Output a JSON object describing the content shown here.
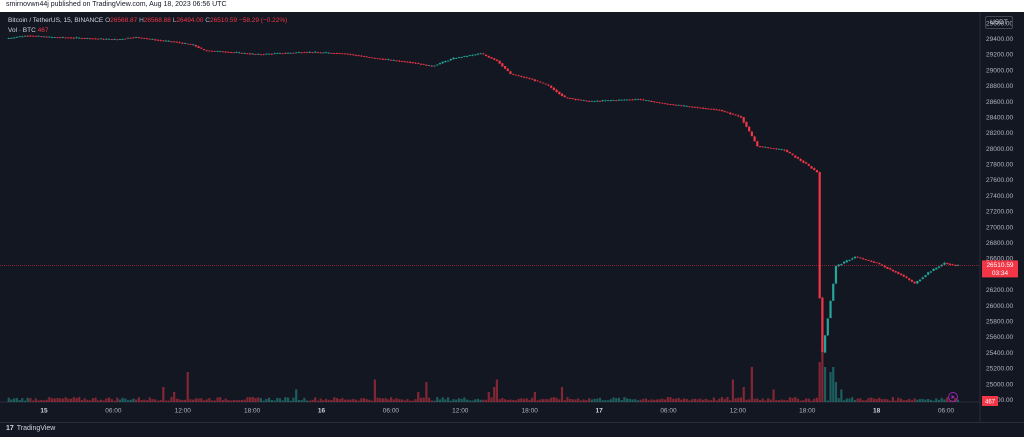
{
  "header": {
    "published": "smirnovwn44j published on TradingView.com, Aug 18, 2023 06:56 UTC"
  },
  "legend": {
    "symbol": "Bitcoin / TetherUS, 15, BINANCE",
    "o_label": "O",
    "o_value": "26568.87",
    "h_label": "H",
    "h_value": "26568.88",
    "l_label": "L",
    "l_value": "26494.00",
    "c_label": "C",
    "c_value": "26510.59",
    "change": "−58.29 (−0.22%)",
    "vol_label": "Vol · BTC",
    "vol_value": "467"
  },
  "price_axis": {
    "quote_currency": "USDT",
    "last_price": "26510.59",
    "countdown": "03:34",
    "volume_tag": "467"
  },
  "footer": {
    "logo_mark": "17",
    "logo_text": "TradingView"
  },
  "colors": {
    "up": "#26a69a",
    "down": "#f23645",
    "background": "#131722",
    "grid": "#1f2330"
  },
  "chart_data": {
    "type": "candlestick",
    "symbol": "BTCUSDT",
    "interval": "15m",
    "exchange": "BINANCE",
    "x_tick_labels": [
      "15",
      "06:00",
      "12:00",
      "18:00",
      "16",
      "06:00",
      "12:00",
      "18:00",
      "17",
      "06:00",
      "12:00",
      "18:00",
      "18",
      "06:00"
    ],
    "y_tick_labels": [
      "29600.00",
      "29400.00",
      "29200.00",
      "29000.00",
      "28800.00",
      "28600.00",
      "28400.00",
      "28200.00",
      "28000.00",
      "27800.00",
      "27600.00",
      "27400.00",
      "27200.00",
      "27000.00",
      "26800.00",
      "26600.00",
      "26400.00",
      "26200.00",
      "26000.00",
      "25800.00",
      "25600.00",
      "25400.00",
      "25200.00",
      "25000.00",
      "24800.00"
    ],
    "ylim": [
      24770,
      29740
    ],
    "grid": false,
    "price_keyframes": [
      [
        0,
        29400
      ],
      [
        3,
        29420
      ],
      [
        8,
        29440
      ],
      [
        16,
        29420
      ],
      [
        26,
        29410
      ],
      [
        33,
        29400
      ],
      [
        41,
        29390
      ],
      [
        47,
        29420
      ],
      [
        50,
        29410
      ],
      [
        56,
        29380
      ],
      [
        62,
        29360
      ],
      [
        69,
        29320
      ],
      [
        73,
        29250
      ],
      [
        78,
        29240
      ],
      [
        93,
        29200
      ],
      [
        111,
        29230
      ],
      [
        125,
        29210
      ],
      [
        136,
        29150
      ],
      [
        149,
        29100
      ],
      [
        157,
        29050
      ],
      [
        165,
        29150
      ],
      [
        175,
        29210
      ],
      [
        181,
        29120
      ],
      [
        186,
        28950
      ],
      [
        194,
        28880
      ],
      [
        200,
        28800
      ],
      [
        206,
        28650
      ],
      [
        215,
        28600
      ],
      [
        233,
        28630
      ],
      [
        243,
        28570
      ],
      [
        253,
        28530
      ],
      [
        263,
        28490
      ],
      [
        271,
        28400
      ],
      [
        277,
        28030
      ],
      [
        287,
        27980
      ],
      [
        295,
        27800
      ],
      [
        299,
        27700
      ],
      [
        300,
        26100
      ],
      [
        301,
        25400
      ],
      [
        306,
        26500
      ],
      [
        313,
        26620
      ],
      [
        321,
        26540
      ],
      [
        330,
        26390
      ],
      [
        335,
        26280
      ],
      [
        340,
        26420
      ],
      [
        346,
        26540
      ],
      [
        350,
        26510
      ]
    ],
    "volume_spikes": [
      [
        58,
        6
      ],
      [
        62,
        4
      ],
      [
        67,
        12
      ],
      [
        107,
        5
      ],
      [
        136,
        9
      ],
      [
        152,
        4
      ],
      [
        155,
        8
      ],
      [
        178,
        4
      ],
      [
        180,
        6
      ],
      [
        181,
        9
      ],
      [
        195,
        4
      ],
      [
        205,
        6
      ],
      [
        268,
        9
      ],
      [
        272,
        6
      ],
      [
        275,
        14
      ],
      [
        283,
        5
      ],
      [
        300,
        16
      ],
      [
        301,
        22
      ],
      [
        302,
        14
      ],
      [
        304,
        12
      ],
      [
        305,
        14
      ],
      [
        306,
        8
      ],
      [
        308,
        5
      ]
    ],
    "last_close": 26510.59
  }
}
